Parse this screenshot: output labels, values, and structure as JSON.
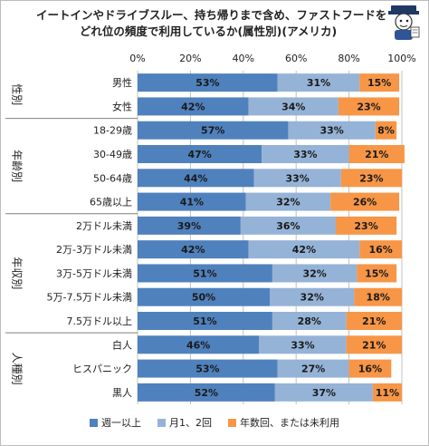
{
  "title_line1": "イートインやドライブスルー、持ち帰りまで含め、ファストフードを",
  "title_line2": "どれ位の頻度で利用しているか(属性別)(アメリカ)",
  "colors": {
    "weekly": "#4f81bd",
    "monthly": "#95b3d7",
    "yearly": "#f79646",
    "grid": "#c0c0c0",
    "group_line": "#7f7f7f"
  },
  "chart_data": {
    "type": "bar",
    "orientation": "horizontal-stacked-100",
    "xlim": [
      0,
      100
    ],
    "x_ticks": [
      "0%",
      "20%",
      "40%",
      "60%",
      "80%",
      "100%"
    ],
    "groups": [
      {
        "label": "性別",
        "categories": [
          "男性",
          "女性"
        ]
      },
      {
        "label": "年齢別",
        "categories": [
          "18-29歳",
          "30-49歳",
          "50-64歳",
          "65歳以上"
        ]
      },
      {
        "label": "年収別",
        "categories": [
          "2万ドル未満",
          "2万-3万ドル未満",
          "3万-5万ドル未満",
          "5万-7.5万ドル未満",
          "7.5万ドル以上"
        ]
      },
      {
        "label": "人種別",
        "categories": [
          "白人",
          "ヒスパニック",
          "黒人"
        ]
      }
    ],
    "categories": [
      "男性",
      "女性",
      "18-29歳",
      "30-49歳",
      "50-64歳",
      "65歳以上",
      "2万ドル未満",
      "2万-3万ドル未満",
      "3万-5万ドル未満",
      "5万-7.5万ドル未満",
      "7.5万ドル以上",
      "白人",
      "ヒスパニック",
      "黒人"
    ],
    "series": [
      {
        "name": "週一以上",
        "values": [
          53,
          42,
          57,
          47,
          44,
          41,
          39,
          42,
          51,
          50,
          51,
          46,
          53,
          52
        ]
      },
      {
        "name": "月1、2回",
        "values": [
          31,
          34,
          33,
          33,
          33,
          32,
          36,
          42,
          32,
          32,
          28,
          33,
          27,
          37
        ]
      },
      {
        "name": "年数回、または未利用",
        "values": [
          15,
          23,
          8,
          21,
          23,
          26,
          23,
          16,
          15,
          18,
          21,
          21,
          16,
          11
        ]
      }
    ],
    "legend": "bottom",
    "grid": true
  }
}
